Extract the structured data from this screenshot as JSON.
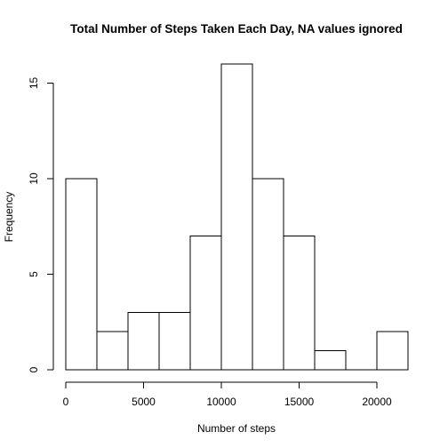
{
  "chart_data": {
    "type": "bar",
    "title": "Total Number of Steps Taken Each Day, NA values ignored",
    "xlabel": "Number of steps",
    "ylabel": "Frequency",
    "bins": [
      {
        "from": 0,
        "to": 2000,
        "count": 10
      },
      {
        "from": 2000,
        "to": 4000,
        "count": 2
      },
      {
        "from": 4000,
        "to": 6000,
        "count": 3
      },
      {
        "from": 6000,
        "to": 8000,
        "count": 3
      },
      {
        "from": 8000,
        "to": 10000,
        "count": 7
      },
      {
        "from": 10000,
        "to": 12000,
        "count": 16
      },
      {
        "from": 12000,
        "to": 14000,
        "count": 10
      },
      {
        "from": 14000,
        "to": 16000,
        "count": 7
      },
      {
        "from": 16000,
        "to": 18000,
        "count": 1
      },
      {
        "from": 18000,
        "to": 20000,
        "count": 0
      },
      {
        "from": 20000,
        "to": 22000,
        "count": 2
      }
    ],
    "xlim": [
      0,
      22000
    ],
    "ylim": [
      0,
      16
    ],
    "xticks": [
      0,
      5000,
      10000,
      15000,
      20000
    ],
    "yticks": [
      0,
      5,
      10,
      15
    ],
    "grid": false,
    "bar_fill": "#ffffff",
    "bar_stroke": "#000000"
  }
}
